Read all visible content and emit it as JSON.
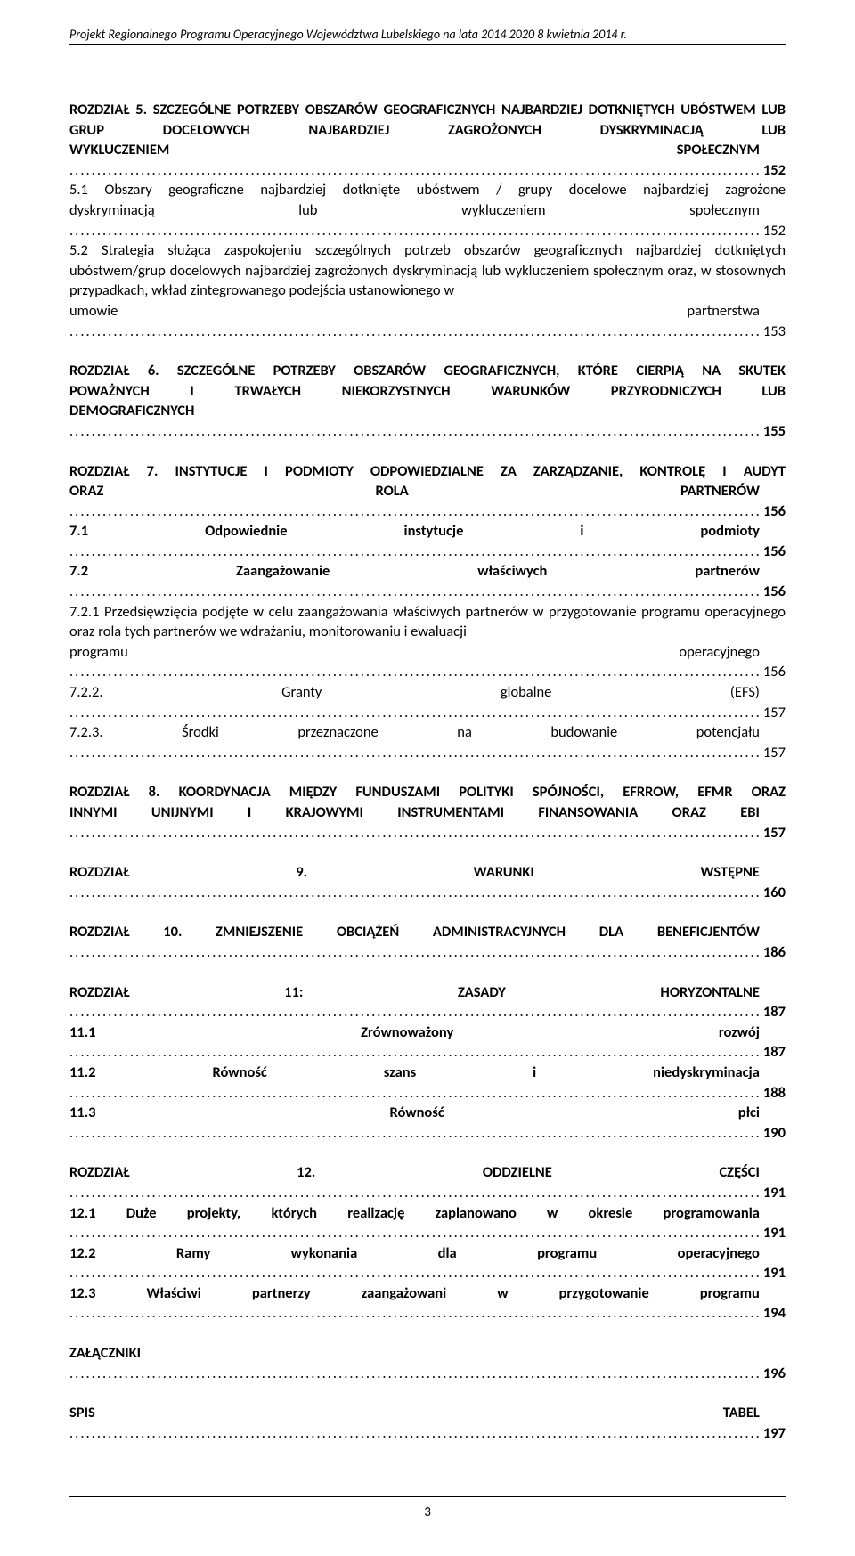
{
  "header": "Projekt Regionalnego Programu Operacyjnego Województwa Lubelskiego na lata 2014 2020 8 kwietnia 2014 r.",
  "footer_page": "3",
  "toc": {
    "r5": {
      "title_lines": [
        "ROZDZIAŁ 5. SZCZEGÓLNE POTRZEBY OBSZARÓW GEOGRAFICZNYCH NAJBARDZIEJ DOTKNIĘTYCH UBÓSTWEM LUB GRUP DOCELOWYCH NAJBARDZIEJ ZAGROŻONYCH DYSKRYMINACJĄ LUB"
      ],
      "title_last": "WYKLUCZENIEM SPOŁECZNYM",
      "page": "152",
      "s1_lines": [
        "5.1 Obszary geograficzne najbardziej dotknięte ubóstwem / grupy docelowe najbardziej zagrożone"
      ],
      "s1_last": "dyskryminacją lub wykluczeniem społecznym",
      "s1_page": "152",
      "s2_lines": [
        "5.2 Strategia służąca zaspokojeniu szczególnych potrzeb obszarów geograficznych najbardziej dotkniętych ubóstwem/grup docelowych najbardziej zagrożonych dyskryminacją lub wykluczeniem społecznym oraz, w stosownych przypadkach, wkład zintegrowanego podejścia ustanowionego w"
      ],
      "s2_last": "umowie partnerstwa",
      "s2_page": "153"
    },
    "r6": {
      "title_lines": [
        "ROZDZIAŁ 6. SZCZEGÓLNE POTRZEBY OBSZARÓW GEOGRAFICZNYCH, KTÓRE CIERPIĄ NA SKUTEK",
        "POWAŻNYCH I TRWAŁYCH NIEKORZYSTNYCH WARUNKÓW PRZYRODNICZYCH LUB"
      ],
      "title_last": "DEMOGRAFICZNYCH",
      "page": "155"
    },
    "r7": {
      "title_lines": [
        "ROZDZIAŁ 7. INSTYTUCJE I PODMIOTY ODPOWIEDZIALNE ZA ZARZĄDZANIE, KONTROLĘ I AUDYT"
      ],
      "title_last": "ORAZ ROLA PARTNERÓW",
      "page": "156",
      "s1": "7.1  Odpowiednie instytucje i podmioty",
      "s1_page": "156",
      "s2": "7.2  Zaangażowanie właściwych partnerów",
      "s2_page": "156",
      "s21_lines": [
        "7.2.1 Przedsięwzięcia podjęte w celu zaangażowania właściwych partnerów w przygotowanie programu operacyjnego oraz rola tych partnerów we wdrażaniu, monitorowaniu  i ewaluacji"
      ],
      "s21_last": "programu operacyjnego",
      "s21_page": "156",
      "s22": "7.2.2. Granty globalne (EFS)",
      "s22_page": "157",
      "s23": "7.2.3. Środki przeznaczone na budowanie potencjału",
      "s23_page": "157"
    },
    "r8": {
      "title_lines": [
        "ROZDZIAŁ 8. KOORDYNACJA MIĘDZY FUNDUSZAMI POLITYKI SPÓJNOŚCI, EFRROW, EFMR ORAZ"
      ],
      "title_last": "INNYMI UNIJNYMI I KRAJOWYMI INSTRUMENTAMI FINANSOWANIA ORAZ EBI",
      "page": "157"
    },
    "r9": {
      "title": "ROZDZIAŁ 9. WARUNKI WSTĘPNE",
      "page": "160"
    },
    "r10": {
      "title": "ROZDZIAŁ 10. ZMNIEJSZENIE OBCIĄŻEŃ ADMINISTRACYJNYCH DLA BENEFICJENTÓW",
      "page": "186"
    },
    "r11": {
      "title": "ROZDZIAŁ 11: ZASADY HORYZONTALNE",
      "page": "187",
      "s1": "11.1 Zrównoważony rozwój",
      "s1_page": "187",
      "s2": "11.2 Równość szans i niedyskryminacja",
      "s2_page": "188",
      "s3": "11.3 Równość płci",
      "s3_page": "190"
    },
    "r12": {
      "title": "ROZDZIAŁ 12. ODDZIELNE CZĘŚCI",
      "page": "191",
      "s1": "12.1 Duże projekty, których realizację zaplanowano w okresie programowania",
      "s1_page": "191",
      "s2": "12.2 Ramy wykonania dla programu operacyjnego",
      "s2_page": "191",
      "s3": "12.3 Właściwi partnerzy zaangażowani w przygotowanie programu",
      "s3_page": "194"
    },
    "attach": {
      "title": "ZAŁĄCZNIKI",
      "page": "196"
    },
    "tables": {
      "title": "SPIS TABEL",
      "page": "197"
    }
  }
}
